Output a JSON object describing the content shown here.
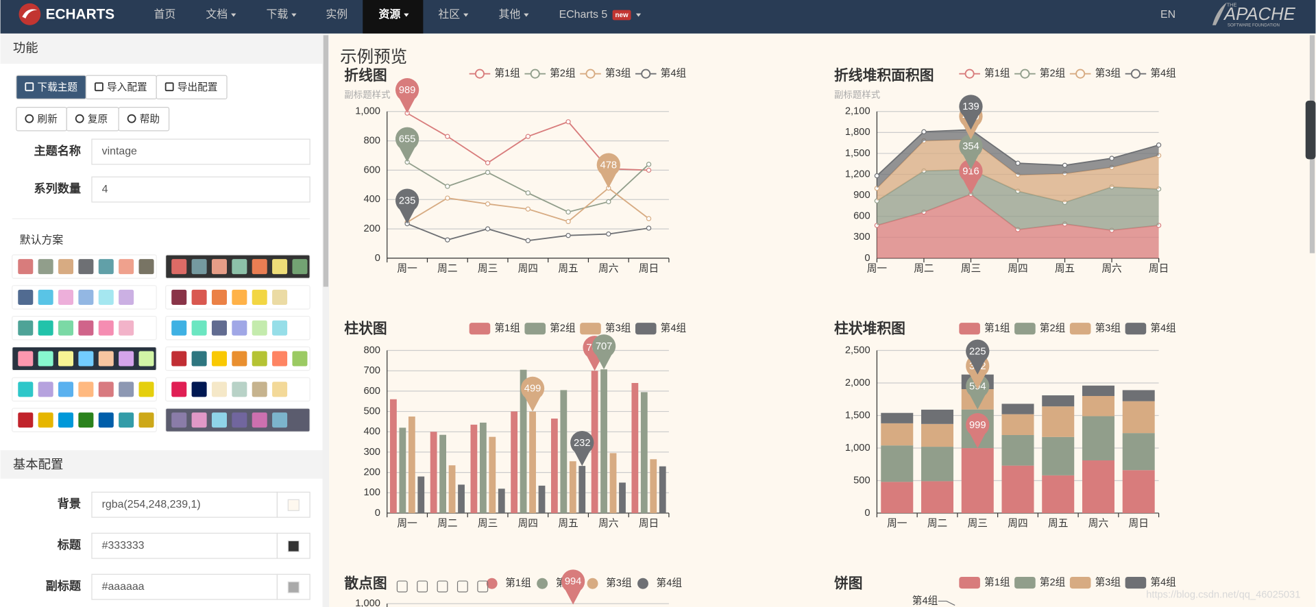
{
  "nav": {
    "logo": "ECHARTS",
    "items": [
      {
        "label": "首页",
        "dropdown": false
      },
      {
        "label": "文档",
        "dropdown": true
      },
      {
        "label": "下载",
        "dropdown": true
      },
      {
        "label": "实例",
        "dropdown": false
      },
      {
        "label": "资源",
        "dropdown": true,
        "active": true
      },
      {
        "label": "社区",
        "dropdown": true
      },
      {
        "label": "其他",
        "dropdown": true
      },
      {
        "label": "ECharts 5",
        "dropdown": true,
        "badge": "new"
      }
    ],
    "lang": "EN",
    "apache": {
      "top": "THE",
      "name": "APACHE",
      "sub": "SOFTWARE FOUNDATION"
    }
  },
  "sidebar": {
    "section1": "功能",
    "buttons": [
      {
        "label": "下载主题",
        "primary": true
      },
      {
        "label": "导入配置"
      },
      {
        "label": "导出配置"
      }
    ],
    "buttons2": [
      {
        "label": "刷新"
      },
      {
        "label": "复原"
      },
      {
        "label": "帮助"
      }
    ],
    "fields": [
      {
        "label": "主题名称",
        "value": "vintage"
      },
      {
        "label": "系列数量",
        "value": "4"
      }
    ],
    "presets_title": "默认方案",
    "palettes": [
      {
        "background": "#ffffff",
        "colors": [
          "#d87c7c",
          "#919e8b",
          "#d7ab82",
          "#6e7074",
          "#61a0a8",
          "#efa18d",
          "#787464"
        ]
      },
      {
        "background": "#333333",
        "colors": [
          "#dd6b66",
          "#759aa0",
          "#e69d87",
          "#8dc1a9",
          "#ea7e53",
          "#eedd78",
          "#73a373"
        ]
      },
      {
        "background": "#ffffff",
        "colors": [
          "#516b91",
          "#59c4e6",
          "#edafda",
          "#93b7e3",
          "#a5e7f0",
          "#cbb0e3"
        ]
      },
      {
        "background": "#ffffff",
        "colors": [
          "#893448",
          "#d95850",
          "#eb8146",
          "#ffb248",
          "#f2d643",
          "#ebdba4"
        ]
      },
      {
        "background": "#ffffff",
        "colors": [
          "#4ea397",
          "#22c3aa",
          "#7bd9a5",
          "#d0648a",
          "#f58db2",
          "#f2b3c9"
        ]
      },
      {
        "background": "#ffffff",
        "colors": [
          "#3fb1e3",
          "#6be6c1",
          "#626c91",
          "#a0a7e6",
          "#c4ebad",
          "#96dee8"
        ]
      },
      {
        "background": "#293441",
        "colors": [
          "#fc97af",
          "#87f7cf",
          "#f7f494",
          "#72ccff",
          "#f7c5a0",
          "#d4a4eb",
          "#d2f5a6"
        ]
      },
      {
        "background": "#ffffff",
        "colors": [
          "#c12e34",
          "#2e7680",
          "#f9c903",
          "#e98f2f",
          "#b5c334",
          "#fe8463",
          "#9bca63"
        ]
      },
      {
        "background": "#ffffff",
        "colors": [
          "#2ec7c9",
          "#b6a2de",
          "#5ab1ef",
          "#ffb980",
          "#d87a80",
          "#8d98b3",
          "#e5cf0d"
        ]
      },
      {
        "background": "#ffffff",
        "colors": [
          "#e01f54",
          "#001852",
          "#f5e8c8",
          "#b8d2c7",
          "#c6b38e",
          "#f3d999"
        ]
      },
      {
        "background": "#ffffff",
        "colors": [
          "#c1232b",
          "#e6b600",
          "#0098d9",
          "#2b821d",
          "#005eaa",
          "#339ca8",
          "#cda819"
        ]
      },
      {
        "background": "#5b5c6e",
        "colors": [
          "#8a7ca8",
          "#e098c7",
          "#8fd3e8",
          "#71669e",
          "#cc70af",
          "#7cb4cc"
        ]
      }
    ],
    "section2": "基本配置",
    "color_fields": [
      {
        "label": "背景",
        "value": "rgba(254,248,239,1)"
      },
      {
        "label": "标题",
        "value": "#333333"
      },
      {
        "label": "副标题",
        "value": "#aaaaaa"
      }
    ]
  },
  "main_title": "示例预览",
  "chart_data": [
    {
      "type": "line",
      "title": "折线图",
      "subtitle": "副标题样式",
      "categories": [
        "周一",
        "周二",
        "周三",
        "周四",
        "周五",
        "周六",
        "周日"
      ],
      "ylim": [
        0,
        1000
      ],
      "yticks": [
        0,
        200,
        400,
        600,
        800,
        {
          "value": 1000,
          "label": "1,000"
        }
      ],
      "grid": true,
      "series": [
        {
          "name": "第1组",
          "color": "#d87c7c",
          "values": [
            989,
            830,
            650,
            830,
            930,
            610,
            600
          ],
          "mark_index": 0
        },
        {
          "name": "第2组",
          "color": "#919e8b",
          "values": [
            655,
            490,
            585,
            445,
            315,
            385,
            640
          ],
          "mark_index": 0
        },
        {
          "name": "第3组",
          "color": "#d7ab82",
          "values": [
            245,
            410,
            370,
            335,
            250,
            478,
            270
          ],
          "mark_index": 5
        },
        {
          "name": "第4组",
          "color": "#6e7074",
          "values": [
            235,
            125,
            200,
            120,
            155,
            165,
            205
          ],
          "mark_index": 0
        }
      ]
    },
    {
      "type": "line",
      "stacked": true,
      "area": true,
      "title": "折线堆积面积图",
      "subtitle": "副标题样式",
      "categories": [
        "周一",
        "周二",
        "周三",
        "周四",
        "周五",
        "周六",
        "周日"
      ],
      "ylim": [
        0,
        2100
      ],
      "yticks": [
        0,
        300,
        600,
        900,
        {
          "value": 1200,
          "label": "1,200"
        },
        {
          "value": 1500,
          "label": "1,500"
        },
        {
          "value": 1800,
          "label": "1,800"
        },
        {
          "value": 2100,
          "label": "2,100"
        }
      ],
      "grid": true,
      "series": [
        {
          "name": "第1组",
          "color": "#d87c7c",
          "values": [
            470,
            660,
            916,
            410,
            490,
            400,
            470
          ],
          "mark_index": 2
        },
        {
          "name": "第2组",
          "color": "#919e8b",
          "values": [
            350,
            590,
            354,
            550,
            310,
            620,
            520
          ],
          "mark_index": 2
        },
        {
          "name": "第3组",
          "color": "#d7ab82",
          "values": [
            180,
            430,
            430,
            230,
            410,
            280,
            480
          ],
          "mark_index": 2
        },
        {
          "name": "第4组",
          "color": "#6e7074",
          "values": [
            180,
            130,
            139,
            170,
            120,
            130,
            150
          ],
          "mark_index": 2
        }
      ]
    },
    {
      "type": "bar",
      "title": "柱状图",
      "categories": [
        "周一",
        "周二",
        "周三",
        "周四",
        "周五",
        "周六",
        "周日"
      ],
      "ylim": [
        0,
        800
      ],
      "yticks": [
        0,
        100,
        200,
        300,
        400,
        500,
        600,
        700,
        800
      ],
      "grid": true,
      "series": [
        {
          "name": "第1组",
          "color": "#d87c7c",
          "values": [
            560,
            400,
            435,
            500,
            465,
            700,
            640
          ],
          "mark_index": 5
        },
        {
          "name": "第2组",
          "color": "#919e8b",
          "values": [
            420,
            385,
            445,
            705,
            605,
            707,
            595
          ],
          "mark_index": 5
        },
        {
          "name": "第3组",
          "color": "#d7ab82",
          "values": [
            475,
            235,
            375,
            499,
            255,
            295,
            265
          ],
          "mark_index": 3
        },
        {
          "name": "第4组",
          "color": "#6e7074",
          "values": [
            180,
            140,
            120,
            135,
            232,
            150,
            230
          ],
          "mark_index": 4
        }
      ]
    },
    {
      "type": "bar",
      "stacked": true,
      "title": "柱状堆积图",
      "categories": [
        "周一",
        "周二",
        "周三",
        "周四",
        "周五",
        "周六",
        "周日"
      ],
      "ylim": [
        0,
        2500
      ],
      "yticks": [
        0,
        500,
        {
          "value": 1000,
          "label": "1,000"
        },
        {
          "value": 1500,
          "label": "1,500"
        },
        {
          "value": 2000,
          "label": "2,000"
        },
        {
          "value": 2500,
          "label": "2,500"
        }
      ],
      "grid": true,
      "series": [
        {
          "name": "第1组",
          "color": "#d87c7c",
          "values": [
            480,
            490,
            999,
            730,
            580,
            810,
            660
          ],
          "mark_index": 2
        },
        {
          "name": "第2组",
          "color": "#919e8b",
          "values": [
            560,
            530,
            594,
            470,
            590,
            680,
            570
          ],
          "mark_index": 2
        },
        {
          "name": "第3组",
          "color": "#d7ab82",
          "values": [
            340,
            350,
            312,
            320,
            470,
            310,
            490
          ],
          "mark_index": 2
        },
        {
          "name": "第4组",
          "color": "#6e7074",
          "values": [
            160,
            220,
            225,
            160,
            170,
            160,
            170
          ],
          "mark_index": 2
        }
      ]
    },
    {
      "type": "scatter",
      "title": "散点图",
      "ylim": [
        0,
        1000
      ],
      "yticks": [
        {
          "value": 1000,
          "label": "1,000"
        }
      ],
      "grid": true,
      "series": [
        {
          "name": "第1组",
          "color": "#d87c7c",
          "values": [
            994
          ],
          "mark_index": 0
        },
        {
          "name": "第2组",
          "color": "#919e8b"
        },
        {
          "name": "第3组",
          "color": "#d7ab82"
        },
        {
          "name": "第4组",
          "color": "#6e7074"
        }
      ]
    },
    {
      "type": "pie",
      "title": "饼图",
      "categories": [
        "第1组",
        "第2组",
        "第3组",
        "第4组"
      ],
      "colors": [
        "#d87c7c",
        "#919e8b",
        "#d7ab82",
        "#6e7074"
      ]
    }
  ],
  "watermark": "https://blog.csdn.net/qq_46025031"
}
